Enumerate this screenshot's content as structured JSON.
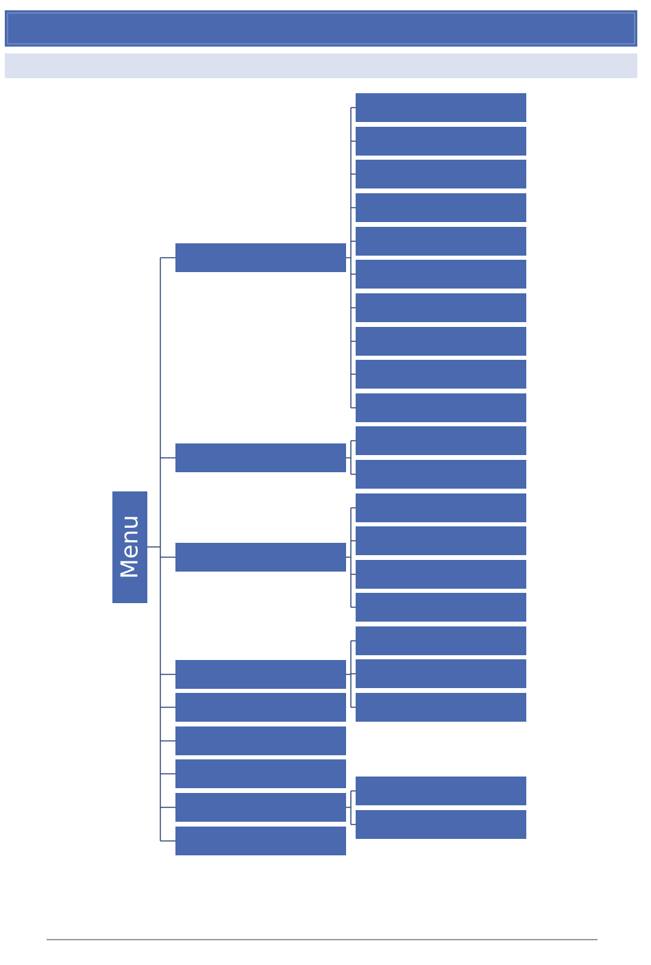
{
  "root": {
    "label": "Menu"
  }
}
